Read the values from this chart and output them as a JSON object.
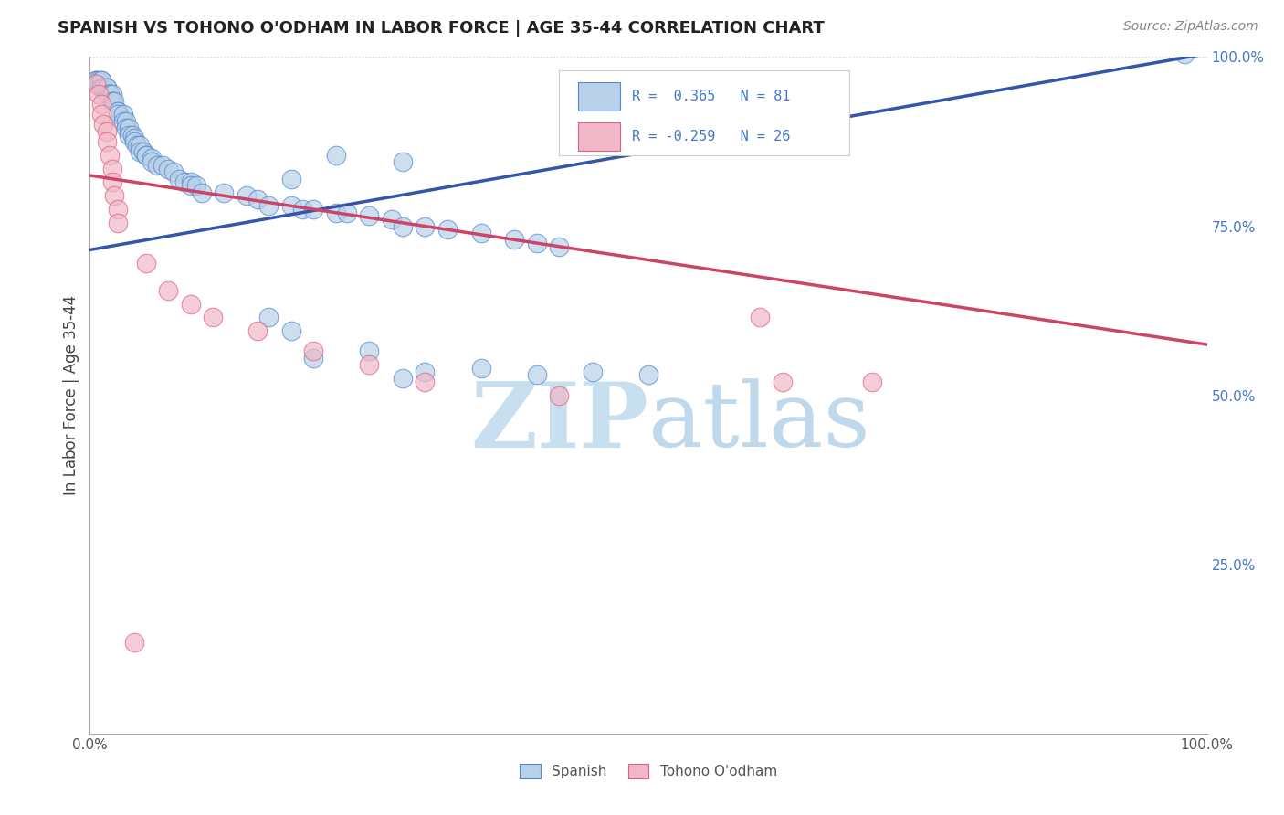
{
  "title": "SPANISH VS TOHONO O'ODHAM IN LABOR FORCE | AGE 35-44 CORRELATION CHART",
  "source": "Source: ZipAtlas.com",
  "ylabel": "In Labor Force | Age 35-44",
  "xlim": [
    0.0,
    1.0
  ],
  "ylim": [
    0.0,
    1.0
  ],
  "spanish_color": "#b8d0e8",
  "tohono_color": "#f0b8c8",
  "spanish_edge_color": "#5588cc",
  "tohono_edge_color": "#e06080",
  "spanish_line_color": "#3355aa",
  "tohono_line_color": "#cc4466",
  "background_color": "#ffffff",
  "grid_color": "#cccccc",
  "title_color": "#222222",
  "watermark_color_zip": "#c8dff0",
  "watermark_color_atlas": "#c0d8ec",
  "spanish_line_y0": 0.715,
  "spanish_line_y1": 1.005,
  "tohono_line_y0": 0.825,
  "tohono_line_y1": 0.575,
  "spanish_scatter": [
    [
      0.005,
      0.965
    ],
    [
      0.005,
      0.965
    ],
    [
      0.005,
      0.965
    ],
    [
      0.008,
      0.965
    ],
    [
      0.01,
      0.965
    ],
    [
      0.01,
      0.965
    ],
    [
      0.01,
      0.955
    ],
    [
      0.01,
      0.955
    ],
    [
      0.012,
      0.955
    ],
    [
      0.015,
      0.955
    ],
    [
      0.015,
      0.955
    ],
    [
      0.015,
      0.945
    ],
    [
      0.018,
      0.945
    ],
    [
      0.018,
      0.945
    ],
    [
      0.02,
      0.945
    ],
    [
      0.02,
      0.935
    ],
    [
      0.02,
      0.935
    ],
    [
      0.022,
      0.935
    ],
    [
      0.025,
      0.92
    ],
    [
      0.025,
      0.92
    ],
    [
      0.025,
      0.915
    ],
    [
      0.03,
      0.915
    ],
    [
      0.03,
      0.905
    ],
    [
      0.032,
      0.905
    ],
    [
      0.032,
      0.895
    ],
    [
      0.035,
      0.895
    ],
    [
      0.035,
      0.885
    ],
    [
      0.038,
      0.885
    ],
    [
      0.04,
      0.88
    ],
    [
      0.04,
      0.875
    ],
    [
      0.042,
      0.87
    ],
    [
      0.045,
      0.87
    ],
    [
      0.045,
      0.86
    ],
    [
      0.048,
      0.86
    ],
    [
      0.05,
      0.855
    ],
    [
      0.05,
      0.855
    ],
    [
      0.055,
      0.85
    ],
    [
      0.055,
      0.845
    ],
    [
      0.06,
      0.84
    ],
    [
      0.065,
      0.84
    ],
    [
      0.07,
      0.835
    ],
    [
      0.075,
      0.83
    ],
    [
      0.08,
      0.82
    ],
    [
      0.085,
      0.815
    ],
    [
      0.09,
      0.815
    ],
    [
      0.09,
      0.81
    ],
    [
      0.095,
      0.81
    ],
    [
      0.1,
      0.8
    ],
    [
      0.12,
      0.8
    ],
    [
      0.14,
      0.795
    ],
    [
      0.15,
      0.79
    ],
    [
      0.16,
      0.78
    ],
    [
      0.18,
      0.78
    ],
    [
      0.19,
      0.775
    ],
    [
      0.2,
      0.775
    ],
    [
      0.22,
      0.77
    ],
    [
      0.23,
      0.77
    ],
    [
      0.25,
      0.765
    ],
    [
      0.27,
      0.76
    ],
    [
      0.28,
      0.75
    ],
    [
      0.3,
      0.75
    ],
    [
      0.32,
      0.745
    ],
    [
      0.35,
      0.74
    ],
    [
      0.38,
      0.73
    ],
    [
      0.4,
      0.725
    ],
    [
      0.42,
      0.72
    ],
    [
      0.22,
      0.855
    ],
    [
      0.28,
      0.845
    ],
    [
      0.18,
      0.82
    ],
    [
      0.16,
      0.615
    ],
    [
      0.18,
      0.595
    ],
    [
      0.2,
      0.555
    ],
    [
      0.25,
      0.565
    ],
    [
      0.28,
      0.525
    ],
    [
      0.3,
      0.535
    ],
    [
      0.35,
      0.54
    ],
    [
      0.4,
      0.53
    ],
    [
      0.45,
      0.535
    ],
    [
      0.5,
      0.53
    ],
    [
      0.98,
      1.005
    ]
  ],
  "tohono_scatter": [
    [
      0.005,
      0.96
    ],
    [
      0.008,
      0.945
    ],
    [
      0.01,
      0.93
    ],
    [
      0.01,
      0.915
    ],
    [
      0.012,
      0.9
    ],
    [
      0.015,
      0.89
    ],
    [
      0.015,
      0.875
    ],
    [
      0.018,
      0.855
    ],
    [
      0.02,
      0.835
    ],
    [
      0.02,
      0.815
    ],
    [
      0.022,
      0.795
    ],
    [
      0.025,
      0.775
    ],
    [
      0.025,
      0.755
    ],
    [
      0.05,
      0.695
    ],
    [
      0.07,
      0.655
    ],
    [
      0.09,
      0.635
    ],
    [
      0.11,
      0.615
    ],
    [
      0.15,
      0.595
    ],
    [
      0.2,
      0.565
    ],
    [
      0.25,
      0.545
    ],
    [
      0.3,
      0.52
    ],
    [
      0.42,
      0.5
    ],
    [
      0.6,
      0.615
    ],
    [
      0.62,
      0.52
    ],
    [
      0.7,
      0.52
    ],
    [
      0.04,
      0.135
    ]
  ]
}
